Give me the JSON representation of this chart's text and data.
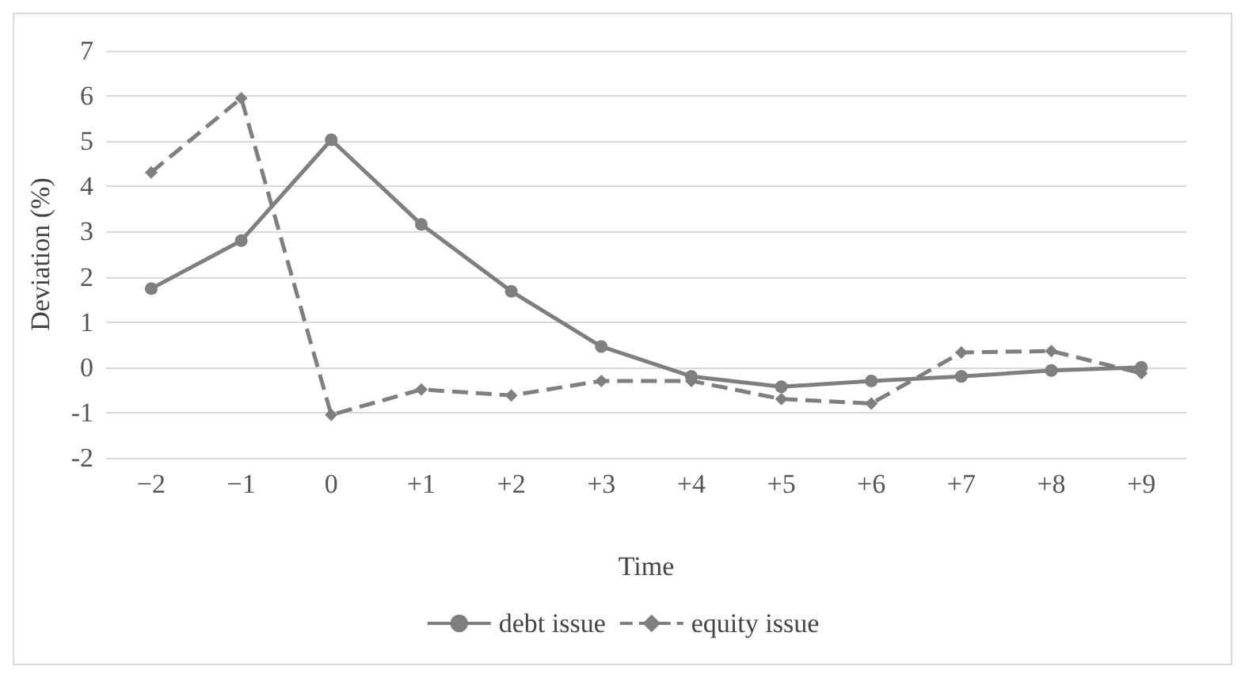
{
  "chart_data": {
    "type": "line",
    "xlabel": "Time",
    "ylabel": "Deviation (%)",
    "categories": [
      "−2",
      "−1",
      "0",
      "+1",
      "+2",
      "+3",
      "+4",
      "+5",
      "+6",
      "+7",
      "+8",
      "+9"
    ],
    "series": [
      {
        "name": "debt issue",
        "color": "#7f7f7f",
        "marker": "circle",
        "line_style": "solid",
        "values": [
          1.74,
          2.8,
          5.03,
          3.16,
          1.68,
          0.46,
          -0.2,
          -0.43,
          -0.3,
          -0.2,
          -0.07,
          0.0
        ]
      },
      {
        "name": "equity issue",
        "color": "#7f7f7f",
        "marker": "diamond",
        "line_style": "dashed",
        "values": [
          4.31,
          5.95,
          -1.05,
          -0.49,
          -0.62,
          -0.3,
          -0.3,
          -0.7,
          -0.8,
          0.33,
          0.36,
          -0.13
        ]
      }
    ],
    "ylim": [
      -2,
      7
    ],
    "yticks": [
      -2,
      -1,
      0,
      1,
      2,
      3,
      4,
      5,
      6,
      7
    ],
    "grid": "y",
    "legend": "bottom"
  }
}
